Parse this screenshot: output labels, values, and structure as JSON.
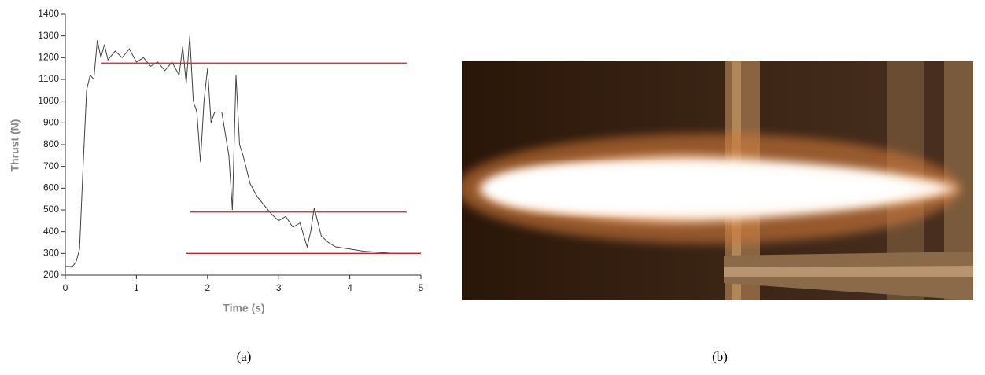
{
  "chart_data": {
    "type": "line",
    "xlabel": "Time (s)",
    "ylabel": "Thrust (N)",
    "x": [
      0,
      0.1,
      0.15,
      0.2,
      0.25,
      0.3,
      0.35,
      0.4,
      0.45,
      0.5,
      0.55,
      0.6,
      0.7,
      0.8,
      0.9,
      1.0,
      1.1,
      1.2,
      1.3,
      1.4,
      1.5,
      1.6,
      1.65,
      1.7,
      1.75,
      1.8,
      1.85,
      1.9,
      1.95,
      2.0,
      2.05,
      2.1,
      2.2,
      2.3,
      2.35,
      2.4,
      2.45,
      2.5,
      2.6,
      2.7,
      2.8,
      2.9,
      3.0,
      3.1,
      3.2,
      3.3,
      3.4,
      3.45,
      3.5,
      3.6,
      3.7,
      3.8,
      4.0,
      4.2,
      4.4,
      4.6,
      4.8,
      5.0
    ],
    "values": [
      240,
      240,
      260,
      320,
      700,
      1050,
      1120,
      1100,
      1280,
      1200,
      1260,
      1190,
      1230,
      1200,
      1240,
      1180,
      1200,
      1160,
      1180,
      1140,
      1180,
      1120,
      1250,
      1080,
      1300,
      1000,
      950,
      720,
      1000,
      1150,
      900,
      950,
      950,
      750,
      500,
      1120,
      800,
      750,
      620,
      560,
      520,
      480,
      450,
      470,
      420,
      440,
      330,
      400,
      510,
      380,
      350,
      330,
      320,
      310,
      305,
      300,
      300,
      300
    ],
    "color": "#444444",
    "xlim": [
      0,
      5
    ],
    "xticks": [
      0,
      1,
      2,
      3,
      4,
      5
    ],
    "ylim": [
      200,
      1400
    ],
    "yticks": [
      200,
      300,
      400,
      500,
      600,
      700,
      800,
      900,
      1000,
      1100,
      1200,
      1300,
      1400
    ],
    "reference_lines": [
      {
        "y": 1175,
        "x": [
          0.5,
          4.8
        ]
      },
      {
        "y": 490,
        "x": [
          1.75,
          4.8
        ]
      },
      {
        "y": 300,
        "x": [
          1.7,
          5
        ]
      }
    ],
    "reference_color": "#cc2222"
  },
  "captions": [
    "(a)",
    "(b)"
  ]
}
